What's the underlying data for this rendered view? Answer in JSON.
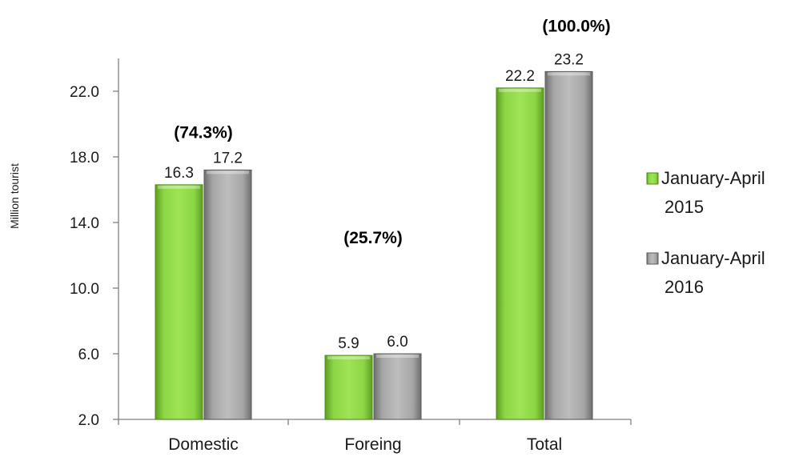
{
  "chart_data": {
    "type": "bar",
    "title": "",
    "xlabel": "",
    "ylabel": "Million tourist",
    "ylim": [
      2.0,
      24.0
    ],
    "yticks": [
      2.0,
      6.0,
      10.0,
      14.0,
      18.0,
      22.0
    ],
    "tick_labels": [
      "2.0",
      "6.0",
      "10.0",
      "14.0",
      "18.0",
      "22.0"
    ],
    "categories": [
      "Domestic",
      "Foreing",
      "Total"
    ],
    "series": [
      {
        "name": "January-April 2015",
        "legend_lines": [
          "January-April",
          "2015"
        ],
        "values": [
          16.3,
          5.9,
          22.2
        ],
        "labels": [
          "16.3",
          "5.9",
          "22.2"
        ],
        "color": "#8cd645"
      },
      {
        "name": "January-April 2016",
        "legend_lines": [
          "January-April",
          "2016"
        ],
        "values": [
          17.2,
          6.0,
          23.2
        ],
        "labels": [
          "17.2",
          "6.0",
          "23.2"
        ],
        "color": "#a6a6a6"
      }
    ],
    "annotations": [
      "(74.3%)",
      "(25.7%)",
      "(100.0%)"
    ],
    "grid": false,
    "legend_position": "right"
  }
}
